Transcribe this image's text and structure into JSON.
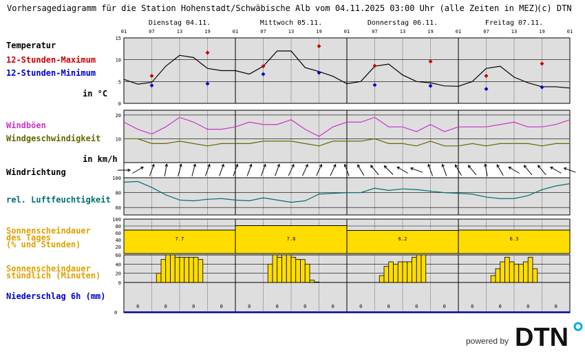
{
  "header": {
    "title": "Vorhersagediagramm für die Station Hohenstadt/Schwäbische Alb vom 04.11.2025 03:00 Uhr (alle Zeiten in MEZ)",
    "copyright": "(c) DTN"
  },
  "days": [
    "Dienstag 04.11.",
    "Mittwoch 05.11.",
    "Donnerstag 06.11.",
    "Freitag 07.11."
  ],
  "hour_ticks": [
    "01",
    "07",
    "13",
    "19",
    "01",
    "07",
    "13",
    "19",
    "01",
    "07",
    "13",
    "19",
    "01",
    "07",
    "13",
    "19",
    "01"
  ],
  "labels": {
    "temp": "Temperatur",
    "tmax": "12-Stunden-Maximum",
    "tmin": "12-Stunden-Minimum",
    "temp_unit": "in °C",
    "gust": "Windböen",
    "wind": "Windgeschwindigkeit",
    "wind_unit": "in km/h",
    "winddir": "Windrichtung",
    "humidity": "rel. Luftfeuchtigkeit",
    "sun_daily_1": "Sonnenscheindauer",
    "sun_daily_2": "des Tages",
    "sun_daily_3": "(% und Stunden)",
    "sun_hourly_1": "Sonnenscheindauer",
    "sun_hourly_2": "stündlich (Minuten)",
    "precip": "Niederschlag 6h (mm)"
  },
  "colors": {
    "temp_label": "#000000",
    "tmax": "#cc0000",
    "tmin": "#0000cc",
    "gust": "#cc33cc",
    "wind": "#666600",
    "humidity": "#007070",
    "sun": "#e0a000",
    "sun_fill": "#ffdd00",
    "precip": "#0000cc",
    "panel_bg": "#dedede"
  },
  "footer": {
    "powered_by": "powered by",
    "logo": "DTN"
  },
  "chart_data": [
    {
      "type": "line",
      "name": "temperature",
      "ylim": [
        0,
        15
      ],
      "yticks": [
        0,
        5,
        10,
        15
      ],
      "x_hours": [
        0,
        3,
        6,
        9,
        12,
        15,
        18,
        21,
        24,
        27,
        30,
        33,
        36,
        39,
        42,
        45,
        48,
        51,
        54,
        57,
        60,
        63,
        66,
        69,
        72,
        75,
        78,
        81,
        84,
        87,
        90,
        93,
        96
      ],
      "values": [
        5.5,
        4.4,
        4.8,
        8.5,
        11,
        10.5,
        8,
        7.5,
        7.5,
        6.7,
        8.5,
        12,
        12,
        8.2,
        7.3,
        6.2,
        4.5,
        5,
        8.5,
        9,
        6.5,
        5,
        4.7,
        4,
        3.9,
        5,
        8,
        8.5,
        6,
        4.7,
        3.8,
        3.8,
        3.5
      ],
      "max": [
        {
          "hour": 6,
          "value": 6.3
        },
        {
          "hour": 18,
          "value": 11.6
        },
        {
          "hour": 30,
          "value": 8.5
        },
        {
          "hour": 42,
          "value": 13.1
        },
        {
          "hour": 54,
          "value": 8.6
        },
        {
          "hour": 66,
          "value": 9.6
        },
        {
          "hour": 78,
          "value": 6.3
        },
        {
          "hour": 90,
          "value": 9.1
        }
      ],
      "min": [
        {
          "hour": 6,
          "value": 4.1
        },
        {
          "hour": 18,
          "value": 4.5
        },
        {
          "hour": 30,
          "value": 6.7
        },
        {
          "hour": 42,
          "value": 7
        },
        {
          "hour": 54,
          "value": 4.2
        },
        {
          "hour": 66,
          "value": 4
        },
        {
          "hour": 78,
          "value": 3.3
        },
        {
          "hour": 90,
          "value": 3.7
        }
      ]
    },
    {
      "type": "line",
      "name": "wind",
      "ylim": [
        0,
        22
      ],
      "yticks": [
        10,
        20
      ],
      "x_hours": [
        0,
        3,
        6,
        9,
        12,
        15,
        18,
        21,
        24,
        27,
        30,
        33,
        36,
        39,
        42,
        45,
        48,
        51,
        54,
        57,
        60,
        63,
        66,
        69,
        72,
        75,
        78,
        81,
        84,
        87,
        90,
        93,
        96
      ],
      "series": [
        {
          "key": "gust",
          "values": [
            17,
            14,
            12,
            15,
            19,
            17,
            14,
            14,
            15,
            17,
            16,
            16,
            18,
            14,
            11,
            15,
            17,
            17,
            19,
            15,
            15,
            13,
            16,
            13,
            15,
            15,
            15,
            16,
            17,
            15,
            15,
            16,
            18
          ]
        },
        {
          "key": "wind",
          "values": [
            10,
            10,
            8,
            8,
            9,
            8,
            7,
            8,
            8,
            8,
            9,
            9,
            9,
            8,
            7,
            9,
            9,
            9,
            10,
            8,
            8,
            7,
            9,
            7,
            7,
            8,
            7,
            8,
            8,
            8,
            7,
            8,
            8
          ]
        }
      ]
    },
    {
      "type": "table",
      "name": "wind-direction",
      "x_hours": [
        0,
        3,
        6,
        9,
        12,
        15,
        18,
        21,
        24,
        27,
        30,
        33,
        36,
        39,
        42,
        45,
        48,
        51,
        54,
        57,
        60,
        63,
        66,
        69,
        72,
        75,
        78,
        81,
        84,
        87,
        90,
        93,
        96
      ],
      "angles_deg": [
        90,
        60,
        20,
        10,
        15,
        15,
        20,
        20,
        20,
        20,
        20,
        20,
        25,
        25,
        25,
        25,
        -20,
        -30,
        -40,
        -45,
        -60,
        -70,
        -20,
        -20,
        -30,
        -40,
        -10,
        -30,
        -60,
        -40,
        -40,
        -60,
        -70
      ]
    },
    {
      "type": "line",
      "name": "humidity",
      "ylim": [
        50,
        100
      ],
      "yticks": [
        60,
        80,
        100
      ],
      "x_hours": [
        0,
        3,
        6,
        9,
        12,
        15,
        18,
        21,
        24,
        27,
        30,
        33,
        36,
        39,
        42,
        45,
        48,
        51,
        54,
        57,
        60,
        63,
        66,
        69,
        72,
        75,
        78,
        81,
        84,
        87,
        90,
        93,
        96
      ],
      "values": [
        94,
        95,
        87,
        77,
        70,
        69,
        71,
        72,
        70,
        69,
        73,
        70,
        67,
        69,
        78,
        79,
        80,
        80,
        86,
        83,
        85,
        84,
        82,
        80,
        79,
        78,
        74,
        72,
        72,
        76,
        84,
        89,
        92
      ]
    },
    {
      "type": "bar",
      "name": "sunshine-daily",
      "ylim": [
        0,
        100
      ],
      "yticks": [
        20,
        40,
        60,
        80,
        100
      ],
      "categories": [
        "Dienstag 04.11.",
        "Mittwoch 05.11.",
        "Donnerstag 06.11.",
        "Freitag 07.11."
      ],
      "percent": [
        68,
        81,
        67,
        68
      ],
      "hours": [
        "7.7",
        "7.8",
        "6.2",
        "6.3"
      ]
    },
    {
      "type": "bar",
      "name": "sunshine-hourly",
      "ylim": [
        0,
        60
      ],
      "yticks": [
        0,
        20,
        40,
        60
      ],
      "hours": [
        7,
        8,
        9,
        10,
        11,
        12,
        13,
        14,
        15,
        16,
        31,
        32,
        33,
        34,
        35,
        36,
        37,
        38,
        39,
        40,
        41,
        55,
        56,
        57,
        58,
        59,
        60,
        61,
        62,
        63,
        64,
        79,
        80,
        81,
        82,
        83,
        84,
        85,
        86,
        87,
        88
      ],
      "values": [
        20,
        50,
        60,
        60,
        55,
        55,
        55,
        55,
        55,
        50,
        40,
        60,
        55,
        60,
        60,
        55,
        50,
        50,
        40,
        5,
        1,
        15,
        35,
        45,
        40,
        45,
        45,
        45,
        55,
        60,
        60,
        15,
        30,
        45,
        55,
        45,
        40,
        40,
        45,
        55,
        30
      ]
    },
    {
      "type": "table",
      "name": "precipitation",
      "x_hours": [
        3,
        9,
        15,
        21,
        27,
        33,
        39,
        45,
        51,
        57,
        63,
        69,
        75,
        81,
        87,
        93
      ],
      "values": [
        "0",
        "0",
        "0",
        "0",
        "0",
        "0",
        "0",
        "0",
        "0",
        "0",
        "0",
        "0",
        "0",
        "0",
        "0",
        "0"
      ]
    }
  ]
}
